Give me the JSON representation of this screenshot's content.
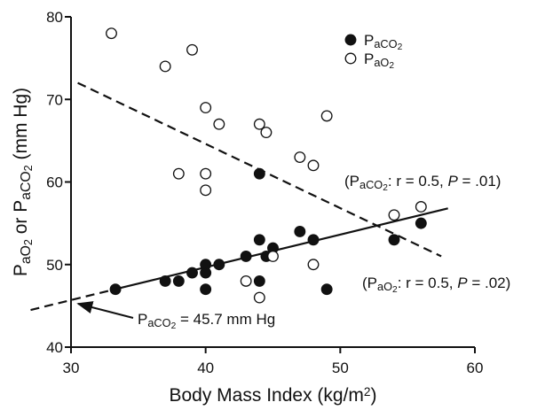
{
  "chart_data": {
    "type": "scatter",
    "xlabel": [
      {
        "text": "Body Mass Index (kg/m"
      },
      {
        "text": "2",
        "shift": "super"
      },
      {
        "text": ")"
      }
    ],
    "ylabel": [
      {
        "text": "P"
      },
      {
        "text": "aO",
        "shift": "sub"
      },
      {
        "text": "2",
        "shift": "subsub"
      },
      {
        "text": " or P"
      },
      {
        "text": "aCO",
        "shift": "sub"
      },
      {
        "text": "2",
        "shift": "subsub"
      },
      {
        "text": " (mm Hg)"
      }
    ],
    "xlim": [
      30,
      60
    ],
    "xticks": [
      30,
      40,
      50,
      60
    ],
    "ylim": [
      40,
      80
    ],
    "yticks": [
      40,
      50,
      60,
      70,
      80
    ],
    "series": [
      {
        "name": [
          {
            "text": "P"
          },
          {
            "text": "aCO",
            "shift": "sub"
          },
          {
            "text": "2",
            "shift": "subsub"
          }
        ],
        "marker": "filled",
        "color": "#111111",
        "x": [
          33.3,
          37,
          38,
          39,
          40,
          40,
          40,
          41,
          43,
          44,
          44,
          44,
          44.5,
          45,
          47,
          48,
          49,
          54,
          56
        ],
        "values": [
          47,
          48,
          48,
          49,
          50,
          49,
          47,
          50,
          51,
          53,
          48,
          61,
          51,
          52,
          54,
          53,
          47,
          53,
          55
        ]
      },
      {
        "name": [
          {
            "text": "P"
          },
          {
            "text": "aO",
            "shift": "sub"
          },
          {
            "text": "2",
            "shift": "subsub"
          }
        ],
        "marker": "open",
        "color": "#111111",
        "x": [
          33,
          37,
          39,
          38,
          40,
          40,
          40,
          41,
          44,
          44.5,
          47,
          48,
          49,
          43,
          44,
          45,
          48,
          54,
          56
        ],
        "values": [
          78,
          74,
          76,
          61,
          69,
          61,
          59,
          67,
          67,
          66,
          63,
          62,
          68,
          48,
          46,
          51,
          50,
          56,
          57
        ]
      }
    ],
    "lines": [
      {
        "style": "dashed",
        "x": [
          27,
          33
        ],
        "values": [
          44.5,
          46.9
        ]
      },
      {
        "style": "solid",
        "x": [
          33,
          58
        ],
        "values": [
          46.9,
          56.8
        ]
      },
      {
        "style": "dashed",
        "x": [
          30.5,
          57.5
        ],
        "values": [
          72,
          51
        ]
      }
    ],
    "annotations": [
      [
        {
          "text": "(P"
        },
        {
          "text": "aCO",
          "shift": "sub"
        },
        {
          "text": "2",
          "shift": "subsub"
        },
        {
          "text": ": r = 0.5, "
        },
        {
          "text": "P",
          "style": "italic"
        },
        {
          "text": " = .01)"
        }
      ],
      [
        {
          "text": "(P"
        },
        {
          "text": "aO",
          "shift": "sub"
        },
        {
          "text": "2",
          "shift": "subsub"
        },
        {
          "text": ": r = 0.5, "
        },
        {
          "text": "P",
          "style": "italic"
        },
        {
          "text": " = .02)"
        }
      ],
      [
        {
          "text": "P"
        },
        {
          "text": "aCO",
          "shift": "sub"
        },
        {
          "text": "2",
          "shift": "subsub"
        },
        {
          "text": " = 45.7 mm Hg"
        }
      ]
    ]
  }
}
